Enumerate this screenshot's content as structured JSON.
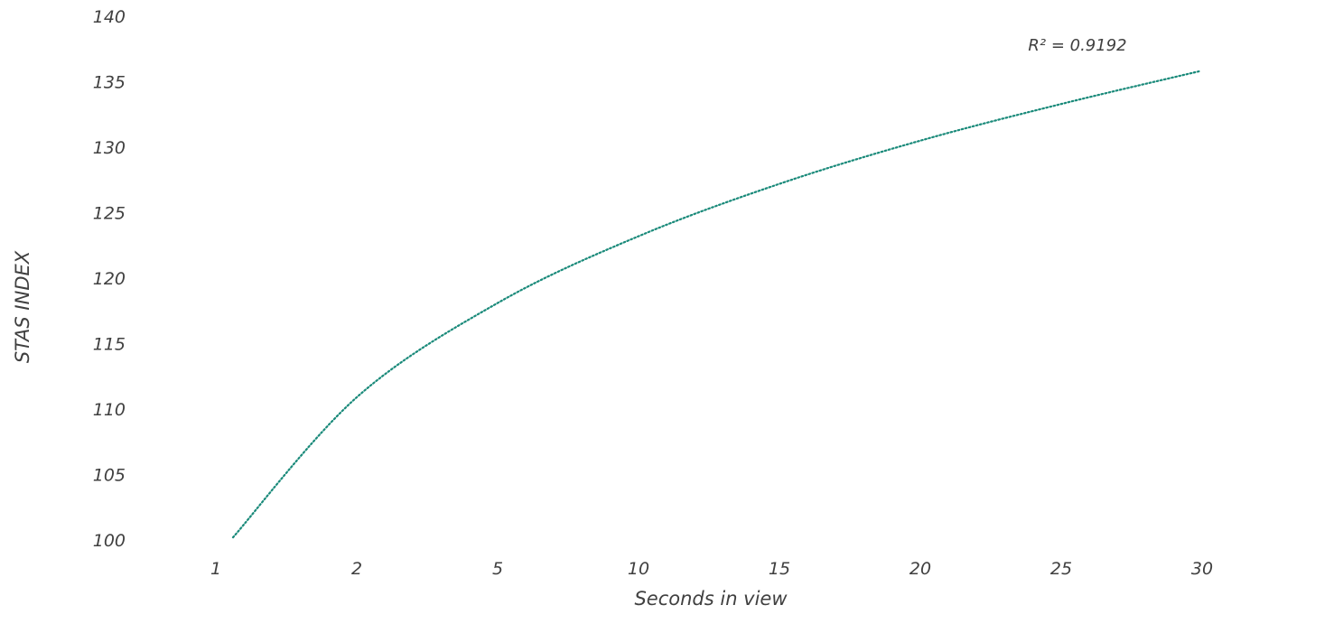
{
  "chart_data": {
    "type": "line",
    "title": "",
    "xlabel": "Seconds in view",
    "ylabel": "STAS INDEX",
    "ylim": [
      100,
      140
    ],
    "y_ticks": [
      "100",
      "105",
      "110",
      "115",
      "120",
      "125",
      "130",
      "135",
      "140"
    ],
    "categories": [
      "1",
      "2",
      "5",
      "10",
      "15",
      "20",
      "25",
      "30"
    ],
    "series": [
      {
        "style": "dotted",
        "color": "#1a8a7a",
        "x": [
          "1",
          "2",
          "5",
          "10",
          "15",
          "20",
          "25",
          "30"
        ],
        "values": [
          100.2,
          110.9,
          118.1,
          123.2,
          127.2,
          130.5,
          133.3,
          135.8
        ]
      }
    ],
    "annotation": "R² = 0.9192",
    "grid": false,
    "legend": "none"
  }
}
